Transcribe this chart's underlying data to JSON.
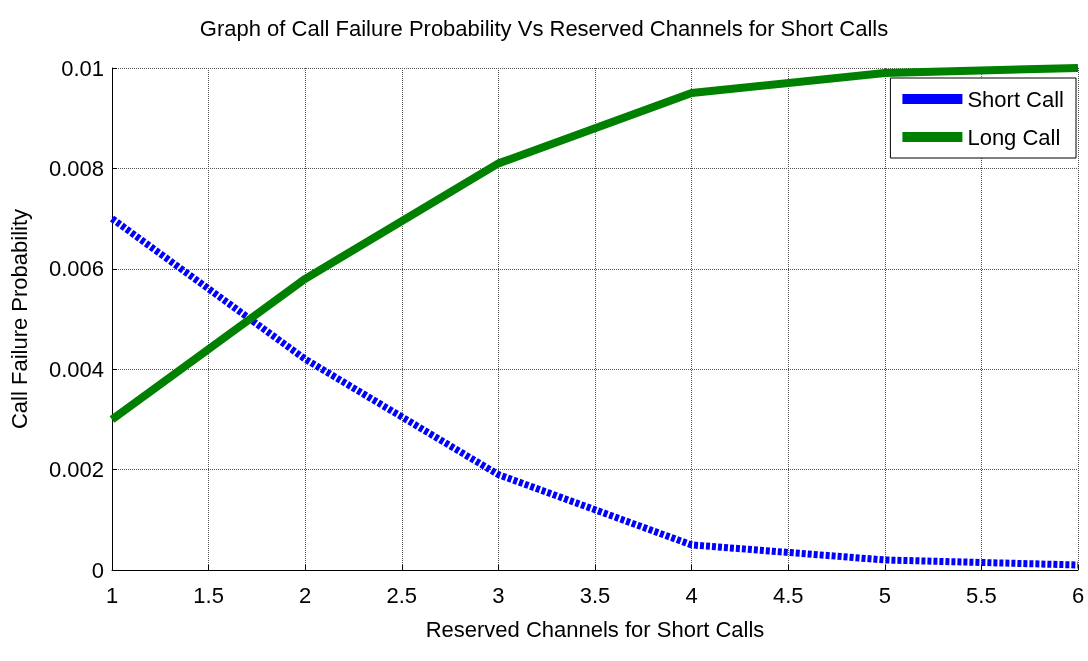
{
  "chart_data": {
    "type": "line",
    "title": "Graph of Call Failure Probability Vs Reserved Channels for Short Calls",
    "xlabel": "Reserved Channels for Short Calls",
    "ylabel": "Call Failure Probability",
    "x": [
      1,
      2,
      3,
      4,
      5,
      6
    ],
    "series": [
      {
        "name": "Short Call",
        "color": "#0000ff",
        "line_style": "dashed",
        "values": [
          0.007,
          0.0042,
          0.0019,
          0.0005,
          0.0002,
          0.0001
        ]
      },
      {
        "name": "Long Call",
        "color": "#008000",
        "line_style": "solid",
        "values": [
          0.003,
          0.0058,
          0.0081,
          0.0095,
          0.0099,
          0.01
        ]
      }
    ],
    "xlim": [
      1,
      6
    ],
    "xticks": [
      1,
      1.5,
      2,
      2.5,
      3,
      3.5,
      4,
      4.5,
      5,
      5.5,
      6
    ],
    "ylim": [
      0,
      0.01
    ],
    "yticks": [
      0,
      0.002,
      0.004,
      0.006,
      0.008,
      0.01
    ],
    "grid": true,
    "legend": "top right",
    "marker": "none"
  }
}
